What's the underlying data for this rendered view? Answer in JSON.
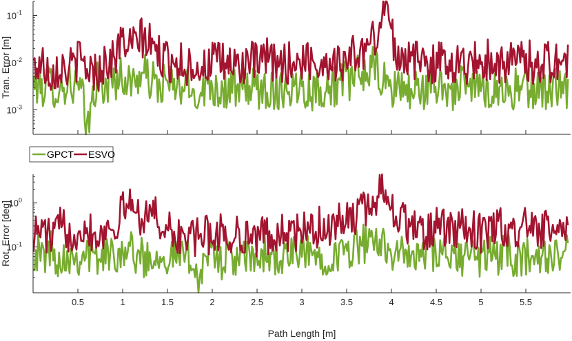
{
  "chart_data": [
    {
      "type": "line",
      "panel": "top",
      "ylabel": "Tran. Error [m]",
      "xlabel": "",
      "yscale": "log",
      "ylim": [
        0.0003,
        0.2
      ],
      "xlim": [
        0,
        6
      ],
      "yticks": [
        0.001,
        0.01,
        0.1
      ],
      "ytick_labels": [
        [
          "10",
          "-3"
        ],
        [
          "10",
          "-2"
        ],
        [
          "10",
          "-1"
        ]
      ],
      "grid": false,
      "series": [
        {
          "name": "GPCT",
          "color": "#77AC30",
          "x": [
            0.0,
            0.1,
            0.2,
            0.3,
            0.4,
            0.5,
            0.55,
            0.6,
            0.7,
            0.8,
            0.9,
            1.0,
            1.1,
            1.2,
            1.3,
            1.4,
            1.5,
            1.6,
            1.7,
            1.8,
            1.9,
            2.0,
            2.1,
            2.2,
            2.3,
            2.4,
            2.5,
            2.6,
            2.7,
            2.8,
            2.9,
            3.0,
            3.1,
            3.2,
            3.3,
            3.4,
            3.5,
            3.6,
            3.7,
            3.8,
            3.9,
            4.0,
            4.1,
            4.2,
            4.3,
            4.4,
            4.5,
            4.6,
            4.7,
            4.8,
            4.9,
            5.0,
            5.1,
            5.2,
            5.3,
            5.4,
            5.5,
            5.6,
            5.7,
            5.8,
            5.9,
            5.97
          ],
          "values": [
            0.004,
            0.003,
            0.0035,
            0.0025,
            0.004,
            0.0028,
            0.002,
            0.00032,
            0.004,
            0.003,
            0.0045,
            0.005,
            0.0035,
            0.006,
            0.0045,
            0.003,
            0.004,
            0.0025,
            0.0035,
            0.002,
            0.003,
            0.0035,
            0.0025,
            0.003,
            0.0022,
            0.0035,
            0.0025,
            0.003,
            0.0024,
            0.0032,
            0.0028,
            0.0035,
            0.0025,
            0.003,
            0.0028,
            0.0035,
            0.004,
            0.005,
            0.006,
            0.008,
            0.004,
            0.0025,
            0.0035,
            0.0022,
            0.003,
            0.0025,
            0.0035,
            0.003,
            0.0025,
            0.0032,
            0.0028,
            0.0035,
            0.0025,
            0.003,
            0.0022,
            0.003,
            0.0025,
            0.003,
            0.0024,
            0.0032,
            0.0028,
            0.002
          ]
        },
        {
          "name": "ESVO",
          "color": "#A2142F",
          "x": [
            0.0,
            0.1,
            0.2,
            0.3,
            0.4,
            0.5,
            0.6,
            0.7,
            0.8,
            0.9,
            1.0,
            1.1,
            1.2,
            1.3,
            1.4,
            1.5,
            1.6,
            1.7,
            1.8,
            1.9,
            2.0,
            2.1,
            2.2,
            2.3,
            2.4,
            2.5,
            2.6,
            2.7,
            2.8,
            2.9,
            3.0,
            3.1,
            3.2,
            3.3,
            3.4,
            3.5,
            3.6,
            3.7,
            3.8,
            3.85,
            3.9,
            3.95,
            4.0,
            4.05,
            4.1,
            4.2,
            4.3,
            4.4,
            4.5,
            4.6,
            4.7,
            4.8,
            4.9,
            5.0,
            5.1,
            5.2,
            5.3,
            5.4,
            5.5,
            5.6,
            5.7,
            5.8,
            5.9,
            5.97
          ],
          "values": [
            0.008,
            0.01,
            0.006,
            0.009,
            0.007,
            0.012,
            0.008,
            0.006,
            0.01,
            0.012,
            0.03,
            0.02,
            0.035,
            0.025,
            0.015,
            0.01,
            0.012,
            0.008,
            0.01,
            0.007,
            0.012,
            0.009,
            0.01,
            0.008,
            0.011,
            0.009,
            0.012,
            0.01,
            0.009,
            0.011,
            0.01,
            0.012,
            0.009,
            0.011,
            0.01,
            0.012,
            0.015,
            0.018,
            0.03,
            0.05,
            0.12,
            0.18,
            0.04,
            0.02,
            0.015,
            0.012,
            0.01,
            0.011,
            0.009,
            0.012,
            0.01,
            0.009,
            0.011,
            0.01,
            0.012,
            0.009,
            0.011,
            0.01,
            0.012,
            0.009,
            0.011,
            0.01,
            0.012,
            0.009
          ]
        }
      ]
    },
    {
      "type": "line",
      "panel": "bottom",
      "ylabel": "Rot. Error [deg]",
      "xlabel": "Path Length [m]",
      "yscale": "log",
      "ylim": [
        0.009,
        4.5
      ],
      "xlim": [
        0,
        6
      ],
      "yticks": [
        0.1,
        1.0
      ],
      "ytick_labels": [
        [
          "10",
          "-1"
        ],
        [
          "10",
          "0"
        ]
      ],
      "xticks": [
        0.5,
        1,
        1.5,
        2,
        2.5,
        3,
        3.5,
        4,
        4.5,
        5,
        5.5
      ],
      "xtick_labels": [
        "0.5",
        "1",
        "1.5",
        "2",
        "2.5",
        "3",
        "3.5",
        "4",
        "4.5",
        "5",
        "5.5"
      ],
      "grid": false,
      "series": [
        {
          "name": "GPCT",
          "color": "#77AC30",
          "x": [
            0.0,
            0.1,
            0.2,
            0.3,
            0.4,
            0.5,
            0.6,
            0.7,
            0.8,
            0.9,
            1.0,
            1.1,
            1.2,
            1.3,
            1.4,
            1.5,
            1.6,
            1.7,
            1.8,
            1.85,
            1.9,
            2.0,
            2.1,
            2.2,
            2.3,
            2.4,
            2.5,
            2.6,
            2.7,
            2.8,
            2.9,
            3.0,
            3.1,
            3.2,
            3.3,
            3.4,
            3.5,
            3.6,
            3.7,
            3.8,
            3.9,
            4.0,
            4.1,
            4.2,
            4.3,
            4.4,
            4.5,
            4.6,
            4.7,
            4.8,
            4.9,
            5.0,
            5.1,
            5.2,
            5.3,
            5.4,
            5.5,
            5.6,
            5.7,
            5.8,
            5.9,
            5.97
          ],
          "values": [
            0.08,
            0.06,
            0.09,
            0.05,
            0.07,
            0.06,
            0.08,
            0.05,
            0.07,
            0.06,
            0.1,
            0.08,
            0.06,
            0.05,
            0.08,
            0.06,
            0.07,
            0.05,
            0.06,
            0.01,
            0.07,
            0.06,
            0.05,
            0.07,
            0.04,
            0.06,
            0.05,
            0.07,
            0.06,
            0.05,
            0.07,
            0.06,
            0.08,
            0.05,
            0.07,
            0.06,
            0.08,
            0.1,
            0.12,
            0.09,
            0.15,
            0.08,
            0.06,
            0.07,
            0.05,
            0.08,
            0.06,
            0.07,
            0.05,
            0.06,
            0.07,
            0.05,
            0.08,
            0.06,
            0.07,
            0.05,
            0.06,
            0.08,
            0.05,
            0.07,
            0.06,
            0.07
          ]
        },
        {
          "name": "ESVO",
          "color": "#A2142F",
          "x": [
            0.0,
            0.1,
            0.2,
            0.3,
            0.4,
            0.5,
            0.6,
            0.7,
            0.8,
            0.9,
            1.0,
            1.05,
            1.1,
            1.2,
            1.3,
            1.4,
            1.5,
            1.6,
            1.7,
            1.8,
            1.9,
            2.0,
            2.1,
            2.2,
            2.3,
            2.4,
            2.5,
            2.6,
            2.7,
            2.8,
            2.9,
            3.0,
            3.1,
            3.2,
            3.3,
            3.4,
            3.5,
            3.6,
            3.7,
            3.8,
            3.85,
            3.9,
            3.95,
            4.0,
            4.05,
            4.1,
            4.2,
            4.3,
            4.4,
            4.5,
            4.6,
            4.7,
            4.8,
            4.9,
            5.0,
            5.1,
            5.2,
            5.3,
            5.4,
            5.5,
            5.6,
            5.7,
            5.8,
            5.9,
            5.97
          ],
          "values": [
            0.2,
            0.25,
            0.15,
            0.3,
            0.2,
            0.25,
            0.3,
            0.18,
            0.25,
            0.3,
            0.6,
            1.2,
            0.8,
            0.5,
            0.7,
            0.4,
            0.25,
            0.15,
            0.2,
            0.15,
            0.2,
            0.18,
            0.22,
            0.15,
            0.2,
            0.18,
            0.15,
            0.2,
            0.17,
            0.22,
            0.18,
            0.25,
            0.2,
            0.3,
            0.25,
            0.35,
            0.4,
            0.5,
            0.7,
            0.9,
            1.5,
            3.5,
            2.0,
            0.8,
            0.5,
            0.4,
            0.3,
            0.25,
            0.2,
            0.3,
            0.25,
            0.2,
            0.3,
            0.25,
            0.2,
            0.25,
            0.3,
            0.2,
            0.25,
            0.3,
            0.2,
            0.25,
            0.2,
            0.3,
            0.15
          ]
        }
      ]
    }
  ],
  "legend": {
    "placement": "between-panels-left",
    "items": [
      {
        "label": "GPCT",
        "color": "#77AC30"
      },
      {
        "label": "ESVO",
        "color": "#A2142F"
      }
    ]
  }
}
